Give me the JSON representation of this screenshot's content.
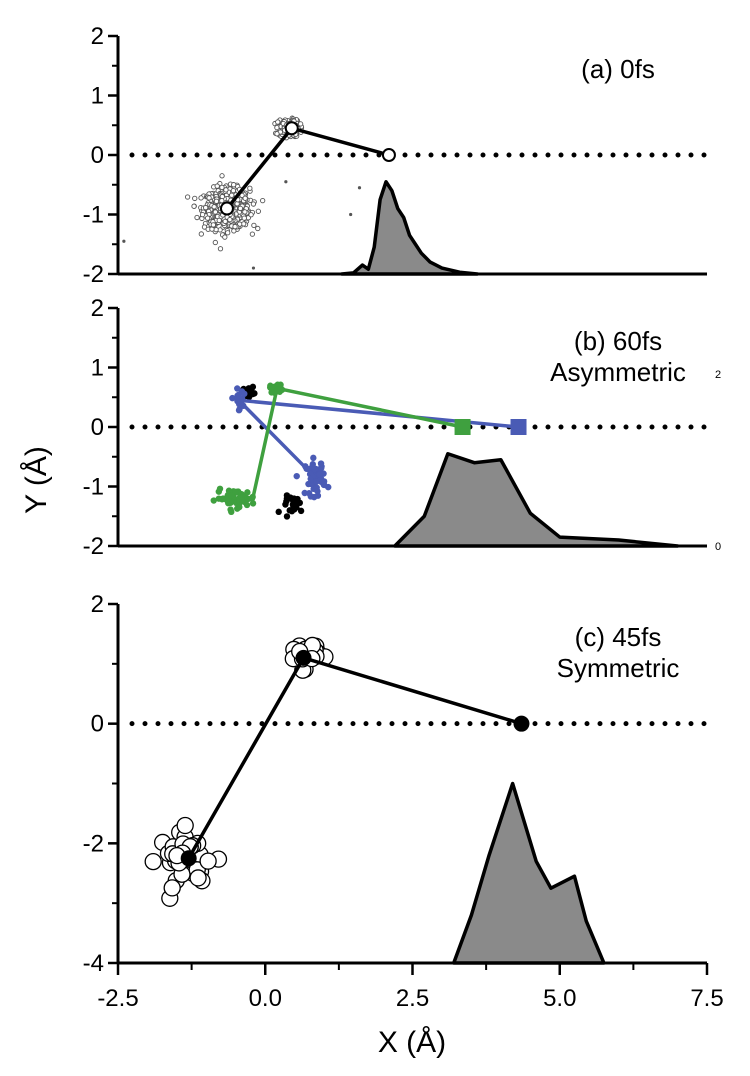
{
  "chart_data": {
    "type": "scatter",
    "x_label": "X (Å)",
    "y_label": "Y (Å)",
    "x_ticks": [
      "-2.5",
      "0.0",
      "2.5",
      "5.0",
      "7.5"
    ],
    "x_range": [
      -2.5,
      7.5
    ],
    "panels": [
      {
        "id": "a",
        "label_lines": [
          "(a) 0fs"
        ],
        "ylim": [
          -2,
          2
        ],
        "y_ticks": [
          2,
          1,
          0,
          -1,
          -2
        ],
        "reference_line_y": 0,
        "structure": [
          [
            -0.65,
            -0.9
          ],
          [
            0.45,
            0.45
          ],
          [
            2.1,
            0.0
          ]
        ],
        "atom_clusters": [
          {
            "center": [
              -0.65,
              -0.9
            ],
            "spread": [
              0.32,
              0.28
            ],
            "count": 700,
            "color": "#555555"
          },
          {
            "center": [
              0.4,
              0.45
            ],
            "spread": [
              0.15,
              0.12
            ],
            "count": 220,
            "color": "#555555"
          }
        ],
        "stray_points": [
          [
            -2.4,
            -1.45
          ],
          [
            1.45,
            -1.0
          ],
          [
            0.35,
            -0.45
          ],
          [
            1.6,
            -0.55
          ],
          [
            -0.2,
            -1.9
          ]
        ],
        "distribution": [
          [
            1.3,
            -2.0
          ],
          [
            1.5,
            -1.98
          ],
          [
            1.65,
            -1.85
          ],
          [
            1.75,
            -1.92
          ],
          [
            1.85,
            -1.55
          ],
          [
            1.95,
            -0.75
          ],
          [
            2.05,
            -0.45
          ],
          [
            2.15,
            -0.6
          ],
          [
            2.25,
            -0.9
          ],
          [
            2.35,
            -1.05
          ],
          [
            2.45,
            -1.35
          ],
          [
            2.55,
            -1.5
          ],
          [
            2.65,
            -1.65
          ],
          [
            2.8,
            -1.8
          ],
          [
            3.0,
            -1.9
          ],
          [
            3.3,
            -1.97
          ],
          [
            3.6,
            -2.0
          ]
        ]
      },
      {
        "id": "b",
        "label_lines": [
          "(b) 60fs",
          "Asymmetric"
        ],
        "ylim": [
          -2,
          2
        ],
        "y_ticks": [
          2,
          1,
          0,
          -1,
          -2
        ],
        "reference_line_y": 0,
        "side_labels": [
          "2",
          "0"
        ],
        "structures": [
          {
            "name": "blue",
            "color": "#4a5bb5",
            "points": [
              [
                0.85,
                -0.85
              ],
              [
                -0.45,
                0.45
              ],
              [
                4.3,
                0.0
              ]
            ]
          },
          {
            "name": "green",
            "color": "#3fa03f",
            "points": [
              [
                -0.2,
                -1.15
              ],
              [
                0.2,
                0.65
              ],
              [
                3.35,
                0.0
              ]
            ]
          }
        ],
        "atom_clusters": [
          {
            "center": [
              -0.3,
              0.6
            ],
            "spread": [
              0.09,
              0.06
            ],
            "count": 22,
            "color": "#000000"
          },
          {
            "center": [
              0.2,
              0.65
            ],
            "spread": [
              0.1,
              0.06
            ],
            "count": 20,
            "color": "#3fa03f"
          },
          {
            "center": [
              -0.45,
              0.45
            ],
            "spread": [
              0.06,
              0.15
            ],
            "count": 22,
            "color": "#4a5bb5"
          },
          {
            "center": [
              -0.5,
              -1.2
            ],
            "spread": [
              0.28,
              0.12
            ],
            "count": 60,
            "color": "#3fa03f"
          },
          {
            "center": [
              0.5,
              -1.3
            ],
            "spread": [
              0.16,
              0.12
            ],
            "count": 26,
            "color": "#000000"
          },
          {
            "center": [
              0.85,
              -0.85
            ],
            "spread": [
              0.14,
              0.25
            ],
            "count": 45,
            "color": "#4a5bb5"
          }
        ],
        "distribution": [
          [
            2.2,
            -2.0
          ],
          [
            2.7,
            -1.5
          ],
          [
            3.1,
            -0.45
          ],
          [
            3.55,
            -0.6
          ],
          [
            4.0,
            -0.55
          ],
          [
            4.5,
            -1.45
          ],
          [
            5.0,
            -1.85
          ],
          [
            6.0,
            -1.9
          ],
          [
            7.0,
            -2.0
          ]
        ]
      },
      {
        "id": "c",
        "label_lines": [
          "(c) 45fs",
          "Symmetric"
        ],
        "ylim": [
          -4,
          2
        ],
        "y_ticks": [
          2,
          0,
          -2,
          -4
        ],
        "reference_line_y": 0,
        "structure": [
          [
            -1.3,
            -2.25
          ],
          [
            0.65,
            1.1
          ],
          [
            4.35,
            0.0
          ]
        ],
        "atom_clusters": [
          {
            "center": [
              -1.3,
              -2.25
            ],
            "spread": [
              0.42,
              0.38
            ],
            "count": 38,
            "color": "#000000"
          },
          {
            "center": [
              0.65,
              1.15
            ],
            "spread": [
              0.22,
              0.18
            ],
            "count": 24,
            "color": "#000000"
          }
        ],
        "distribution": [
          [
            3.2,
            -4.0
          ],
          [
            3.5,
            -3.2
          ],
          [
            3.8,
            -2.2
          ],
          [
            4.2,
            -1.0
          ],
          [
            4.6,
            -2.3
          ],
          [
            4.85,
            -2.75
          ],
          [
            5.25,
            -2.55
          ],
          [
            5.45,
            -3.3
          ],
          [
            5.75,
            -4.0
          ]
        ]
      }
    ]
  }
}
